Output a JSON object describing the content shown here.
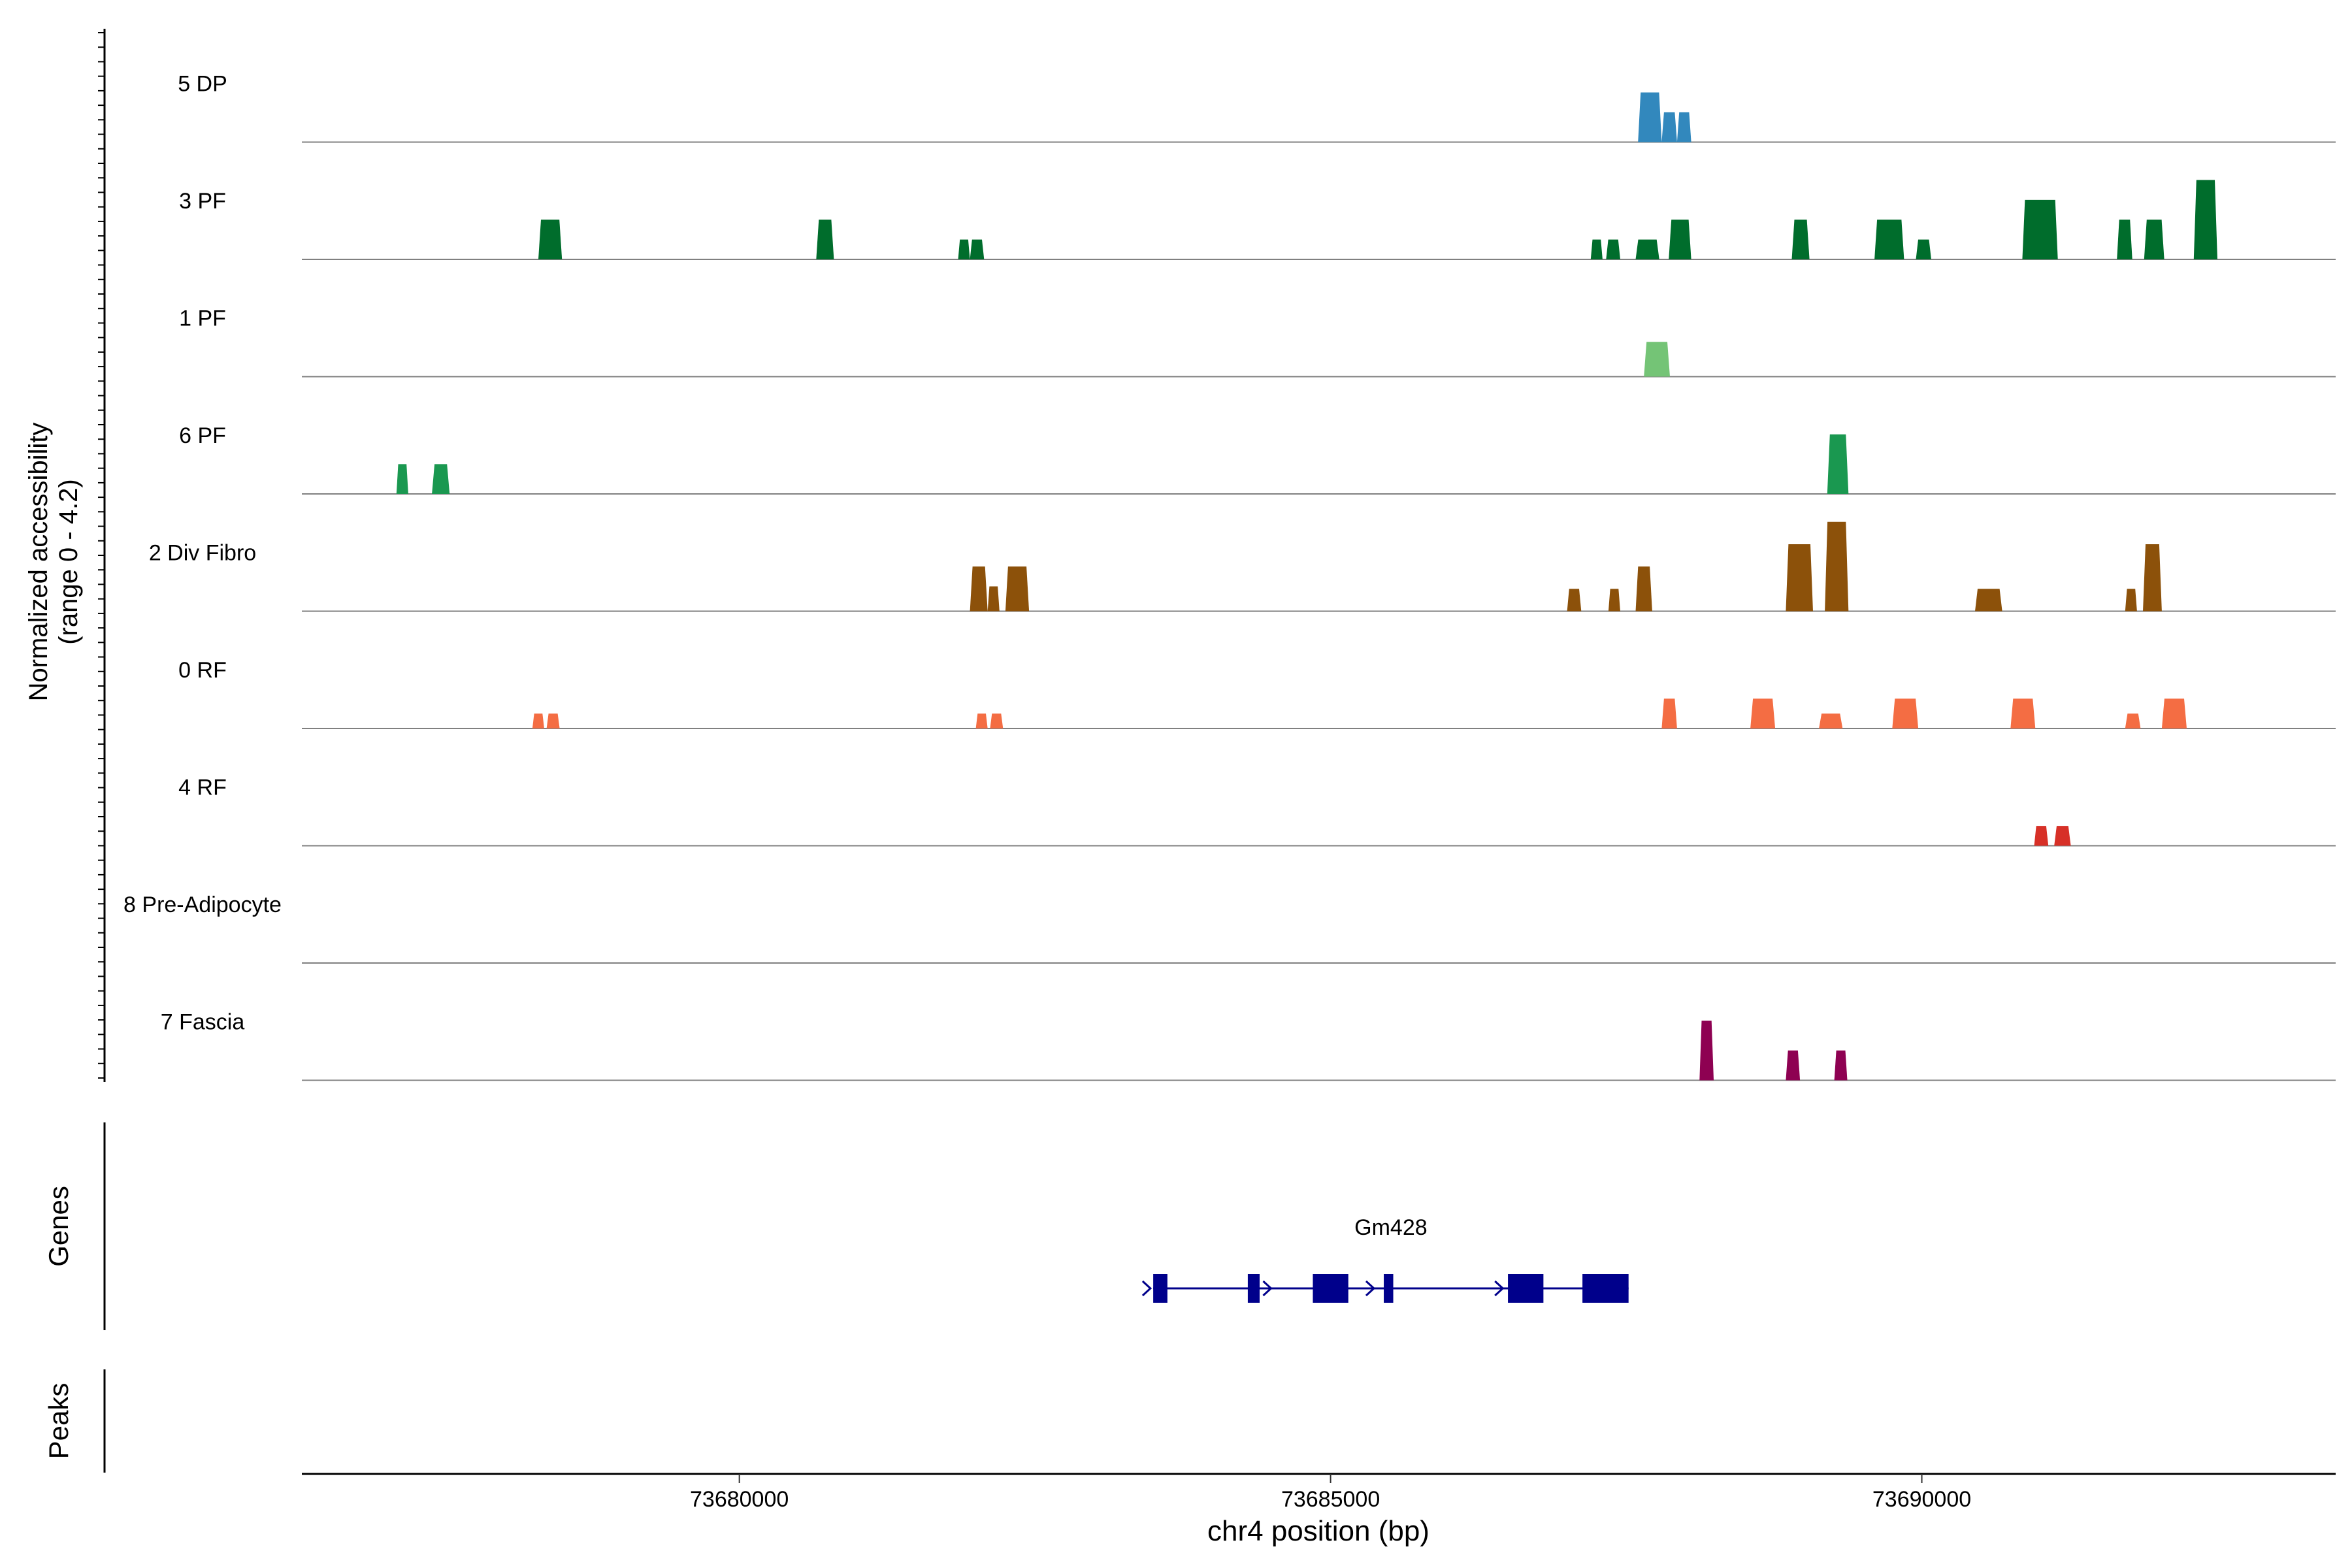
{
  "chart_data": {
    "type": "area",
    "y_axis_label": [
      "Normalized accessibility",
      "(range 0 - 4.2)"
    ],
    "y_range": [
      0,
      4.2
    ],
    "x_axis_label": "chr4 position (bp)",
    "x_range": [
      73676300,
      73693500
    ],
    "x_ticks": [
      {
        "value": 73680000,
        "label": "73680000"
      },
      {
        "value": 73685000,
        "label": "73685000"
      },
      {
        "value": 73690000,
        "label": "73690000"
      }
    ],
    "tracks": [
      {
        "name": "5 DP",
        "color": "#3288bd",
        "peaks": [
          {
            "start": 73687600,
            "end": 73687800,
            "h": 2.0
          },
          {
            "start": 73687800,
            "end": 73687930,
            "h": 1.2
          },
          {
            "start": 73687930,
            "end": 73688050,
            "h": 1.2
          }
        ]
      },
      {
        "name": "3 PF",
        "color": "#006d2c",
        "peaks": [
          {
            "start": 73678300,
            "end": 73678500,
            "h": 1.6
          },
          {
            "start": 73680650,
            "end": 73680800,
            "h": 1.6
          },
          {
            "start": 73681850,
            "end": 73681950,
            "h": 0.8
          },
          {
            "start": 73681950,
            "end": 73682070,
            "h": 0.8
          },
          {
            "start": 73687200,
            "end": 73687300,
            "h": 0.8
          },
          {
            "start": 73687330,
            "end": 73687450,
            "h": 0.8
          },
          {
            "start": 73687580,
            "end": 73687780,
            "h": 0.8
          },
          {
            "start": 73687860,
            "end": 73688050,
            "h": 1.6
          },
          {
            "start": 73688900,
            "end": 73689050,
            "h": 1.6
          },
          {
            "start": 73689600,
            "end": 73689850,
            "h": 1.6
          },
          {
            "start": 73689950,
            "end": 73690080,
            "h": 0.8
          },
          {
            "start": 73690850,
            "end": 73691150,
            "h": 2.4
          },
          {
            "start": 73691650,
            "end": 73691780,
            "h": 1.6
          },
          {
            "start": 73691880,
            "end": 73692050,
            "h": 1.6
          },
          {
            "start": 73692300,
            "end": 73692500,
            "h": 3.2
          }
        ]
      },
      {
        "name": "1 PF",
        "color": "#74c476",
        "peaks": [
          {
            "start": 73687650,
            "end": 73687870,
            "h": 1.4
          }
        ]
      },
      {
        "name": "6 PF",
        "color": "#1a9850",
        "peaks": [
          {
            "start": 73677100,
            "end": 73677200,
            "h": 1.2
          },
          {
            "start": 73677400,
            "end": 73677550,
            "h": 1.2
          },
          {
            "start": 73689200,
            "end": 73689380,
            "h": 2.4
          }
        ]
      },
      {
        "name": "2 Div Fibro",
        "color": "#8c510a",
        "peaks": [
          {
            "start": 73681950,
            "end": 73682100,
            "h": 1.8
          },
          {
            "start": 73682100,
            "end": 73682200,
            "h": 1.0
          },
          {
            "start": 73682250,
            "end": 73682450,
            "h": 1.8
          },
          {
            "start": 73687000,
            "end": 73687120,
            "h": 0.9
          },
          {
            "start": 73687350,
            "end": 73687450,
            "h": 0.9
          },
          {
            "start": 73687580,
            "end": 73687720,
            "h": 1.8
          },
          {
            "start": 73688850,
            "end": 73689080,
            "h": 2.7
          },
          {
            "start": 73689180,
            "end": 73689380,
            "h": 3.6
          },
          {
            "start": 73690450,
            "end": 73690680,
            "h": 0.9
          },
          {
            "start": 73691720,
            "end": 73691820,
            "h": 0.9
          },
          {
            "start": 73691870,
            "end": 73692030,
            "h": 2.7
          }
        ]
      },
      {
        "name": "0 RF",
        "color": "#f46d43",
        "peaks": [
          {
            "start": 73678250,
            "end": 73678350,
            "h": 0.6
          },
          {
            "start": 73678370,
            "end": 73678480,
            "h": 0.6
          },
          {
            "start": 73682000,
            "end": 73682100,
            "h": 0.6
          },
          {
            "start": 73682120,
            "end": 73682230,
            "h": 0.6
          },
          {
            "start": 73687800,
            "end": 73687930,
            "h": 1.2
          },
          {
            "start": 73688550,
            "end": 73688760,
            "h": 1.2
          },
          {
            "start": 73689130,
            "end": 73689330,
            "h": 0.6
          },
          {
            "start": 73689750,
            "end": 73689970,
            "h": 1.2
          },
          {
            "start": 73690750,
            "end": 73690960,
            "h": 1.2
          },
          {
            "start": 73691720,
            "end": 73691850,
            "h": 0.6
          },
          {
            "start": 73692030,
            "end": 73692240,
            "h": 1.2
          }
        ]
      },
      {
        "name": "4 RF",
        "color": "#d73027",
        "peaks": [
          {
            "start": 73690950,
            "end": 73691070,
            "h": 0.8
          },
          {
            "start": 73691120,
            "end": 73691260,
            "h": 0.8
          }
        ]
      },
      {
        "name": "8 Pre-Adipocyte",
        "color": "#6a3d9a",
        "peaks": []
      },
      {
        "name": "7 Fascia",
        "color": "#8e0152",
        "peaks": [
          {
            "start": 73688120,
            "end": 73688240,
            "h": 2.4
          },
          {
            "start": 73688850,
            "end": 73688970,
            "h": 1.2
          },
          {
            "start": 73689260,
            "end": 73689370,
            "h": 1.2
          }
        ]
      }
    ],
    "genes_label": "Genes",
    "peaks_label": "Peaks",
    "gene": {
      "name": "Gm428",
      "color": "#00008b",
      "start": 73683500,
      "end": 73687520,
      "exons": [
        {
          "start": 73683500,
          "end": 73683620
        },
        {
          "start": 73684300,
          "end": 73684400
        },
        {
          "start": 73684850,
          "end": 73685150
        },
        {
          "start": 73685450,
          "end": 73685530
        },
        {
          "start": 73686500,
          "end": 73686800
        },
        {
          "start": 73687130,
          "end": 73687520
        }
      ],
      "strand_arrows": [
        73683460,
        73684480,
        73685350,
        73686440
      ]
    }
  }
}
